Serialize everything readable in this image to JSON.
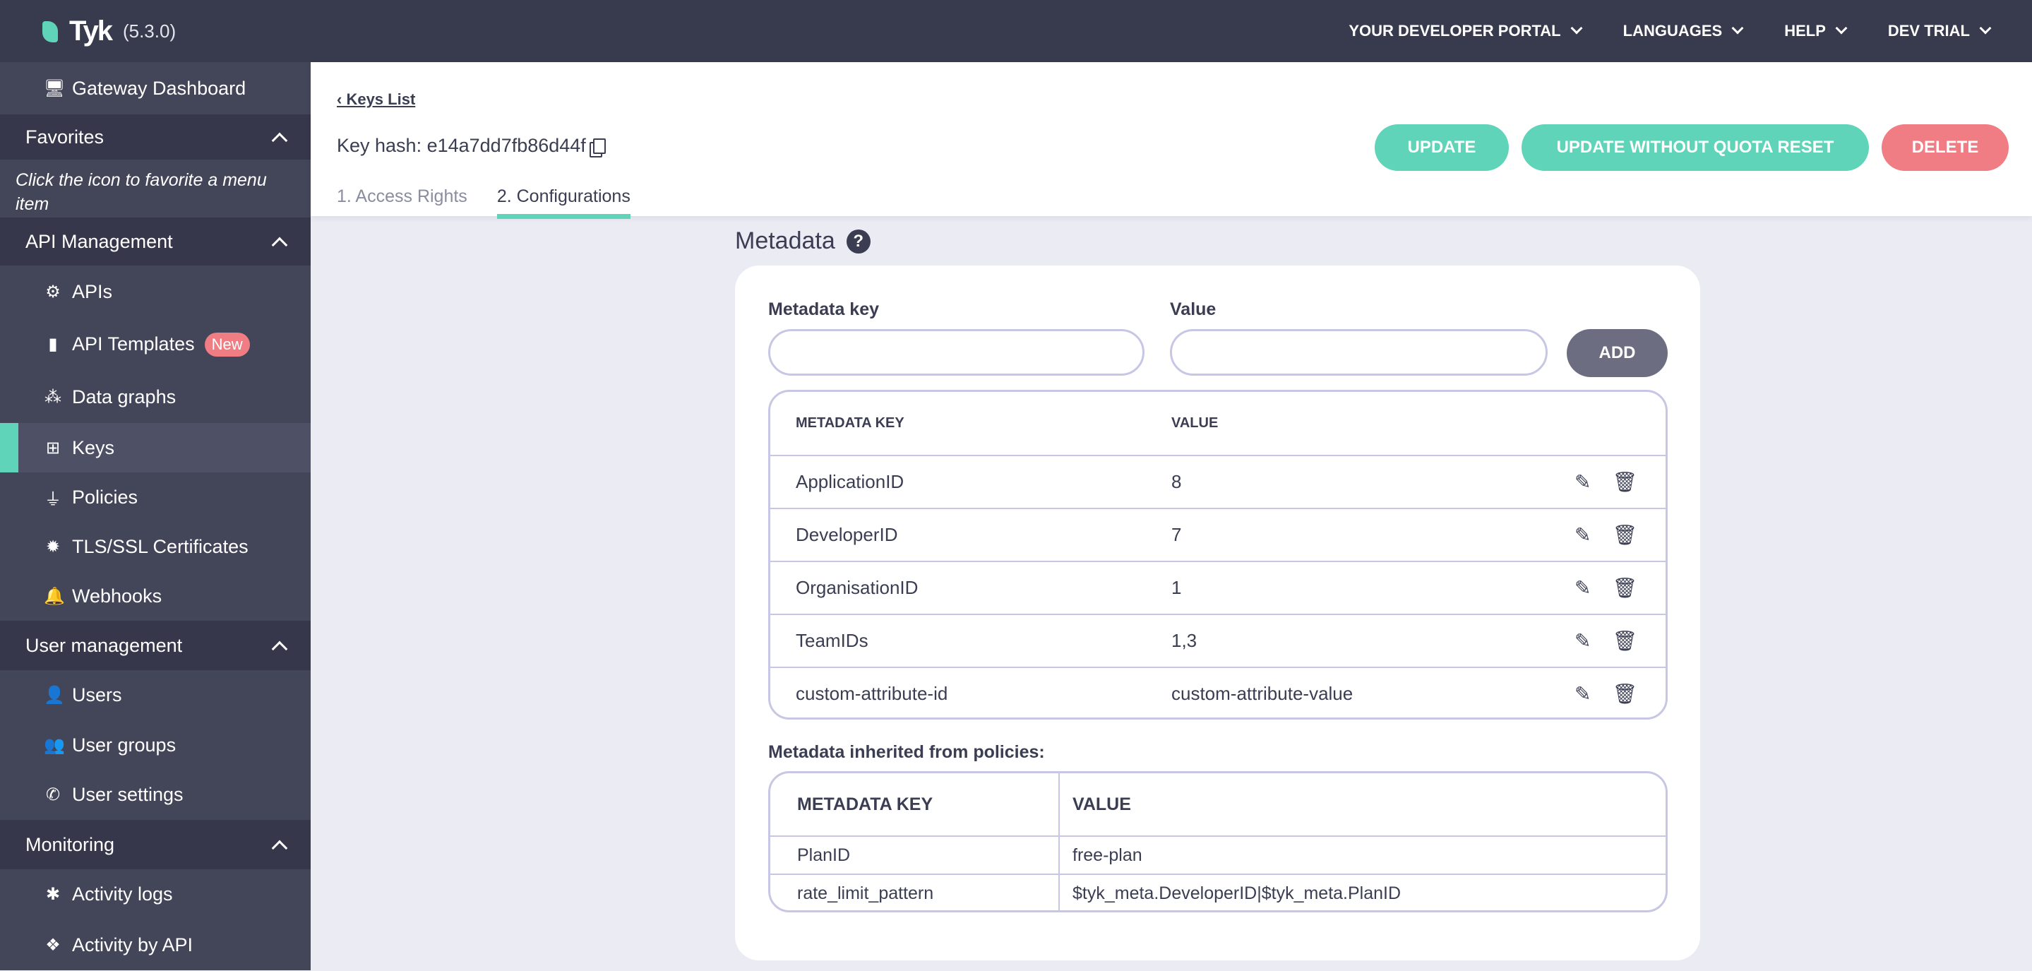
{
  "topbar": {
    "logo": "Tyk",
    "version": "(5.3.0)",
    "nav": [
      "YOUR DEVELOPER PORTAL",
      "LANGUAGES",
      "HELP",
      "DEV TRIAL"
    ]
  },
  "sidebar": {
    "gateway": "Gateway Dashboard",
    "favorites": {
      "label": "Favorites",
      "note": "Click the icon to favorite a menu item"
    },
    "api_management": {
      "label": "API Management",
      "items": [
        "APIs",
        "API Templates",
        "Data graphs",
        "Keys",
        "Policies",
        "TLS/SSL Certificates",
        "Webhooks"
      ],
      "new_badge": "New"
    },
    "user_management": {
      "label": "User management",
      "items": [
        "Users",
        "User groups",
        "User settings"
      ]
    },
    "monitoring": {
      "label": "Monitoring",
      "items": [
        "Activity logs",
        "Activity by API"
      ]
    }
  },
  "header": {
    "back": "Keys List",
    "key_hash": "Key hash: e14a7dd7fb86d44f",
    "tabs": [
      "1. Access Rights",
      "2. Configurations"
    ],
    "active_tab": 1,
    "buttons": {
      "update": "UPDATE",
      "update_no_quota": "UPDATE WITHOUT QUOTA RESET",
      "delete": "DELETE"
    }
  },
  "metadata": {
    "title": "Metadata",
    "help": "?",
    "key_label": "Metadata key",
    "value_label": "Value",
    "key_value": "",
    "value_value": "",
    "add": "ADD",
    "columns": [
      "METADATA KEY",
      "VALUE"
    ],
    "rows": [
      [
        "ApplicationID",
        "8"
      ],
      [
        "DeveloperID",
        "7"
      ],
      [
        "OrganisationID",
        "1"
      ],
      [
        "TeamIDs",
        "1,3"
      ],
      [
        "custom-attribute-id",
        "custom-attribute-value"
      ]
    ],
    "inherited_label": "Metadata inherited from policies:",
    "inherited_columns": [
      "METADATA KEY",
      "VALUE"
    ],
    "inherited_rows": [
      [
        "PlanID",
        "free-plan"
      ],
      [
        "rate_limit_pattern",
        "$tyk_meta.DeveloperID|$tyk_meta.PlanID"
      ]
    ]
  },
  "colors": {
    "accent": "#5fd4b8",
    "danger": "#f07d83",
    "topbar": "#383a4d",
    "sidebar": "#434559"
  }
}
